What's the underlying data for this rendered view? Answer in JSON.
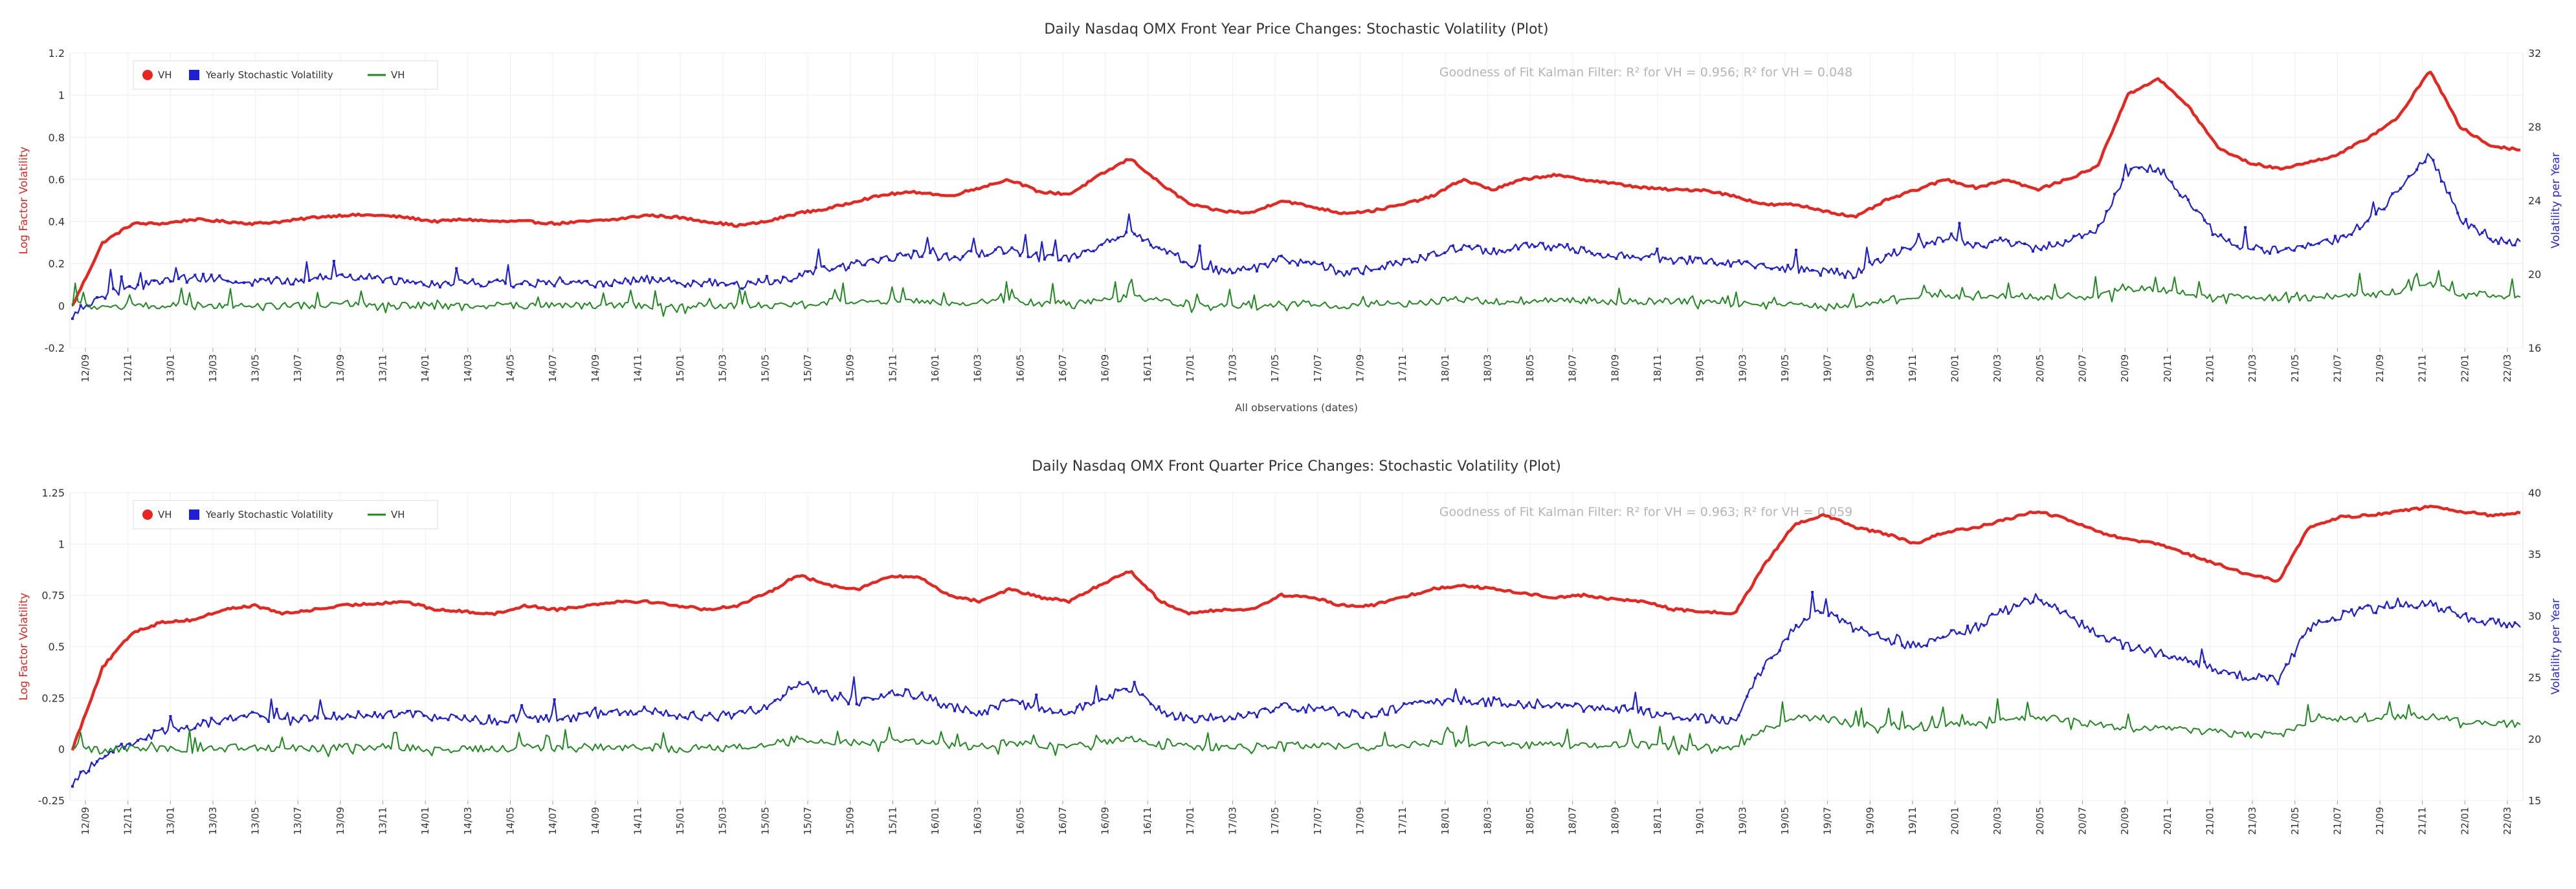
{
  "chart_data": [
    {
      "type": "line",
      "title": "Daily Nasdaq OMX Front Year Price Changes: Stochastic Volatility (Plot)",
      "annotation": "Goodness of Fit Kalman Filter: R² for VH = 0.956; R² for VH = 0.048",
      "xlabel": "All observations (dates)",
      "ylabel_left": "Log Factor Volatility",
      "ylabel_right": "Volatility per Year",
      "ylim_left": [
        -0.2,
        1.2
      ],
      "ylim_right": [
        16,
        32
      ],
      "yticks_left": [
        "1.2",
        "1",
        "0.8",
        "0.6",
        "0.4",
        "0.2",
        "0",
        "-0.2"
      ],
      "yticks_right": [
        "32",
        "28",
        "24",
        "20",
        "16"
      ],
      "x_tick_labels": [
        "12/09",
        "12/11",
        "13/01",
        "13/03",
        "13/05",
        "13/07",
        "13/09",
        "13/11",
        "14/01",
        "14/03",
        "14/05",
        "14/07",
        "14/09",
        "14/11",
        "15/01",
        "15/03",
        "15/05",
        "15/07",
        "15/09",
        "15/11",
        "16/01",
        "16/03",
        "16/05",
        "16/07",
        "16/09",
        "16/11",
        "17/01",
        "17/03",
        "17/05",
        "17/07",
        "17/09",
        "17/11",
        "18/01",
        "18/03",
        "18/05",
        "18/07",
        "18/09",
        "18/11",
        "19/01",
        "19/03",
        "19/05",
        "19/07",
        "19/09",
        "19/11",
        "20/01",
        "20/03",
        "20/05",
        "20/07",
        "20/09",
        "20/11",
        "21/01",
        "21/03",
        "21/05",
        "21/07",
        "21/09",
        "21/11",
        "22/01",
        "22/03"
      ],
      "legend": [
        "VH",
        "Yearly Stochastic Volatility",
        "VH"
      ],
      "legend_position": "top-left",
      "series": [
        {
          "name": "VH",
          "axis": "left",
          "color": "#e8261f",
          "values": [
            0.0,
            0.3,
            0.39,
            0.39,
            0.41,
            0.4,
            0.39,
            0.4,
            0.42,
            0.43,
            0.43,
            0.42,
            0.4,
            0.41,
            0.4,
            0.4,
            0.39,
            0.4,
            0.41,
            0.43,
            0.42,
            0.4,
            0.38,
            0.4,
            0.44,
            0.46,
            0.5,
            0.53,
            0.54,
            0.52,
            0.56,
            0.6,
            0.54,
            0.53,
            0.62,
            0.7,
            0.58,
            0.48,
            0.45,
            0.44,
            0.5,
            0.47,
            0.44,
            0.45,
            0.48,
            0.52,
            0.6,
            0.55,
            0.6,
            0.62,
            0.6,
            0.58,
            0.56,
            0.55,
            0.55,
            0.52,
            0.48,
            0.48,
            0.45,
            0.42,
            0.5,
            0.55,
            0.6,
            0.56,
            0.6,
            0.55,
            0.6,
            0.66,
            1.0,
            1.08,
            0.95,
            0.75,
            0.68,
            0.65,
            0.68,
            0.72,
            0.8,
            0.9,
            1.12,
            0.85,
            0.76,
            0.74
          ]
        },
        {
          "name": "Yearly Stochastic Volatility",
          "axis": "right",
          "color": "#1f1fd6",
          "values": [
            17.8,
            18.8,
            19.3,
            19.6,
            19.8,
            19.7,
            19.6,
            19.6,
            19.8,
            19.9,
            19.8,
            19.6,
            19.5,
            19.6,
            19.5,
            19.5,
            19.4,
            19.5,
            19.6,
            19.7,
            19.6,
            19.5,
            19.4,
            19.5,
            19.9,
            20.3,
            20.5,
            20.9,
            21.1,
            20.9,
            21.1,
            21.4,
            20.9,
            20.9,
            21.6,
            22.3,
            21.4,
            20.6,
            20.1,
            20.3,
            20.8,
            20.6,
            20.1,
            20.3,
            20.6,
            21.0,
            21.5,
            21.2,
            21.6,
            21.4,
            21.3,
            21.0,
            20.9,
            20.8,
            20.7,
            20.6,
            20.4,
            20.3,
            20.1,
            20.0,
            21.0,
            21.5,
            22.0,
            21.5,
            21.8,
            21.4,
            21.8,
            22.4,
            25.5,
            25.8,
            24.0,
            22.0,
            21.4,
            21.3,
            21.6,
            21.8,
            23.0,
            24.5,
            26.5,
            23.0,
            21.8,
            21.7
          ]
        },
        {
          "name": "VH",
          "axis": "left",
          "color": "#1e8a1e",
          "values": [
            0.01,
            -0.01,
            0.0,
            0.0,
            0.01,
            0.0,
            0.0,
            0.0,
            0.0,
            0.01,
            0.0,
            0.0,
            0.0,
            0.0,
            0.0,
            0.0,
            0.0,
            0.0,
            0.0,
            0.0,
            0.0,
            0.0,
            0.0,
            0.0,
            0.01,
            0.02,
            0.02,
            0.02,
            0.02,
            0.01,
            0.02,
            0.03,
            0.01,
            0.01,
            0.02,
            0.04,
            0.02,
            0.01,
            0.0,
            0.0,
            0.01,
            0.01,
            0.0,
            0.01,
            0.01,
            0.02,
            0.03,
            0.02,
            0.02,
            0.03,
            0.02,
            0.02,
            0.02,
            0.02,
            0.02,
            0.01,
            0.01,
            0.01,
            0.0,
            0.0,
            0.03,
            0.05,
            0.05,
            0.04,
            0.05,
            0.04,
            0.05,
            0.05,
            0.08,
            0.08,
            0.06,
            0.04,
            0.04,
            0.04,
            0.04,
            0.05,
            0.06,
            0.07,
            0.1,
            0.06,
            0.05,
            0.04
          ]
        }
      ]
    },
    {
      "type": "line",
      "title": "Daily Nasdaq OMX Front Quarter Price Changes: Stochastic Volatility (Plot)",
      "annotation": "Goodness of Fit Kalman Filter: R² for VH = 0.963; R² for VH = 0.059",
      "xlabel": "",
      "ylabel_left": "Log Factor Volatility",
      "ylabel_right": "Volatility per Year",
      "ylim_left": [
        -0.25,
        1.25
      ],
      "ylim_right": [
        15,
        40
      ],
      "yticks_left": [
        "1.25",
        "1",
        "0.75",
        "0.5",
        "0.25",
        "0",
        "-0.25"
      ],
      "yticks_right": [
        "40",
        "35",
        "30",
        "25",
        "20",
        "15"
      ],
      "x_tick_labels": [
        "12/09",
        "12/11",
        "13/01",
        "13/03",
        "13/05",
        "13/07",
        "13/09",
        "13/11",
        "14/01",
        "14/03",
        "14/05",
        "14/07",
        "14/09",
        "14/11",
        "15/01",
        "15/03",
        "15/05",
        "15/07",
        "15/09",
        "15/11",
        "16/01",
        "16/03",
        "16/05",
        "16/07",
        "16/09",
        "16/11",
        "17/01",
        "17/03",
        "17/05",
        "17/07",
        "17/09",
        "17/11",
        "18/01",
        "18/03",
        "18/05",
        "18/07",
        "18/09",
        "18/11",
        "19/01",
        "19/03",
        "19/05",
        "19/07",
        "19/09",
        "19/11",
        "20/01",
        "20/03",
        "20/05",
        "20/07",
        "20/09",
        "20/11",
        "21/01",
        "21/03",
        "21/05",
        "21/07",
        "21/09",
        "21/11",
        "22/01",
        "22/03"
      ],
      "legend": [
        "VH",
        "Yearly Stochastic Volatility",
        "VH"
      ],
      "legend_position": "top-left",
      "series": [
        {
          "name": "VH",
          "axis": "left",
          "color": "#e8261f",
          "values": [
            0.0,
            0.4,
            0.57,
            0.62,
            0.63,
            0.68,
            0.7,
            0.66,
            0.68,
            0.7,
            0.71,
            0.72,
            0.68,
            0.67,
            0.66,
            0.7,
            0.68,
            0.7,
            0.72,
            0.72,
            0.7,
            0.68,
            0.7,
            0.76,
            0.85,
            0.8,
            0.78,
            0.84,
            0.84,
            0.75,
            0.72,
            0.78,
            0.74,
            0.72,
            0.8,
            0.87,
            0.72,
            0.66,
            0.68,
            0.68,
            0.75,
            0.74,
            0.7,
            0.7,
            0.74,
            0.78,
            0.8,
            0.78,
            0.76,
            0.74,
            0.75,
            0.73,
            0.72,
            0.68,
            0.67,
            0.66,
            0.9,
            1.1,
            1.14,
            1.08,
            1.05,
            1.0,
            1.06,
            1.08,
            1.12,
            1.16,
            1.12,
            1.06,
            1.02,
            1.0,
            0.95,
            0.9,
            0.85,
            0.82,
            1.08,
            1.13,
            1.14,
            1.16,
            1.18,
            1.16,
            1.14,
            1.15
          ]
        },
        {
          "name": "Yearly Stochastic Volatility",
          "axis": "right",
          "color": "#1f1fd6",
          "values": [
            16.5,
            18.5,
            19.8,
            20.6,
            21.0,
            21.6,
            21.9,
            21.4,
            21.7,
            21.9,
            22.0,
            22.1,
            21.8,
            21.6,
            21.5,
            21.8,
            21.7,
            21.9,
            22.2,
            22.2,
            22.0,
            21.8,
            22.0,
            22.6,
            24.5,
            23.6,
            23.0,
            23.8,
            23.6,
            22.6,
            22.2,
            23.0,
            22.5,
            22.2,
            23.2,
            24.2,
            22.3,
            21.6,
            21.8,
            21.9,
            22.6,
            22.5,
            22.0,
            22.1,
            22.5,
            23.0,
            23.2,
            23.0,
            22.8,
            22.6,
            22.6,
            22.4,
            22.2,
            21.8,
            21.7,
            21.5,
            26.0,
            29.0,
            30.5,
            29.0,
            28.0,
            27.5,
            28.5,
            29.0,
            30.5,
            31.5,
            30.0,
            28.5,
            27.5,
            27.0,
            26.5,
            25.5,
            25.0,
            24.8,
            29.0,
            30.0,
            30.5,
            31.0,
            31.0,
            30.0,
            29.5,
            29.0
          ]
        },
        {
          "name": "VH",
          "axis": "left",
          "color": "#1e8a1e",
          "values": [
            0.02,
            -0.01,
            0.01,
            0.0,
            0.0,
            0.01,
            0.01,
            0.0,
            0.0,
            0.01,
            0.01,
            0.01,
            0.0,
            0.0,
            0.0,
            0.01,
            0.0,
            0.01,
            0.01,
            0.01,
            0.0,
            0.0,
            0.01,
            0.02,
            0.05,
            0.03,
            0.03,
            0.04,
            0.04,
            0.02,
            0.01,
            0.03,
            0.02,
            0.01,
            0.03,
            0.05,
            0.02,
            0.01,
            0.01,
            0.01,
            0.02,
            0.02,
            0.01,
            0.01,
            0.02,
            0.03,
            0.03,
            0.03,
            0.02,
            0.02,
            0.02,
            0.02,
            0.02,
            0.01,
            0.01,
            0.0,
            0.1,
            0.15,
            0.15,
            0.12,
            0.12,
            0.1,
            0.12,
            0.13,
            0.15,
            0.16,
            0.14,
            0.12,
            0.1,
            0.1,
            0.09,
            0.08,
            0.07,
            0.07,
            0.14,
            0.15,
            0.15,
            0.16,
            0.16,
            0.14,
            0.13,
            0.12
          ]
        }
      ]
    }
  ]
}
